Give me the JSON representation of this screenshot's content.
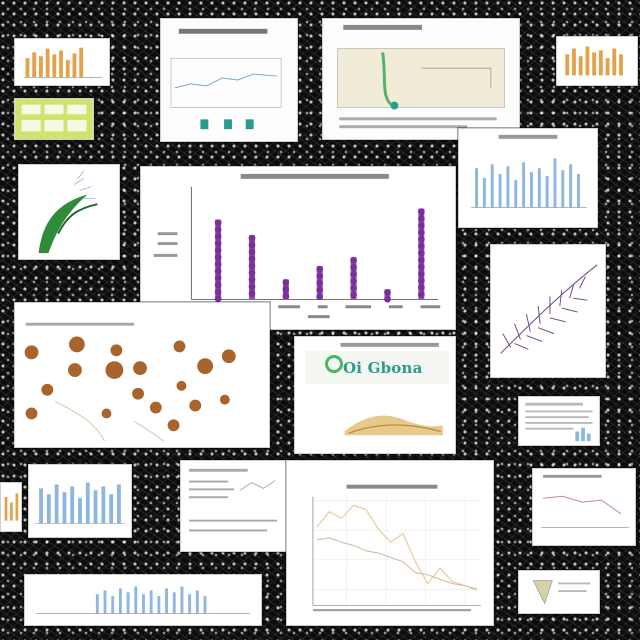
{
  "palette": {
    "purple": "#7a2f9a",
    "blue": "#8fb6e0",
    "orange": "#e3a24a",
    "green": "#2f8a3a",
    "teal": "#2a9a8e",
    "brown": "#a8642a"
  },
  "cards": {
    "logo_card": {
      "text": "Oi Gbona"
    }
  },
  "main_chart": {
    "chart_data": {
      "type": "bar",
      "categories": [
        "",
        "",
        "",
        "",
        "",
        "",
        ""
      ],
      "values": [
        72,
        58,
        18,
        30,
        38,
        9,
        82
      ],
      "ylim": [
        0,
        100
      ]
    }
  },
  "line_chart": {
    "chart_data": {
      "type": "line",
      "x": [
        0,
        1,
        2,
        3,
        4,
        5,
        6,
        7,
        8,
        9,
        10,
        11,
        12,
        13
      ],
      "series": [
        {
          "values": [
            72,
            86,
            80,
            92,
            88,
            70,
            58,
            66,
            40,
            20,
            34,
            22,
            18,
            14
          ]
        },
        {
          "values": [
            60,
            62,
            58,
            55,
            50,
            48,
            44,
            40,
            30,
            28,
            24,
            20,
            18,
            15
          ]
        }
      ],
      "ylim": [
        0,
        100
      ]
    }
  }
}
